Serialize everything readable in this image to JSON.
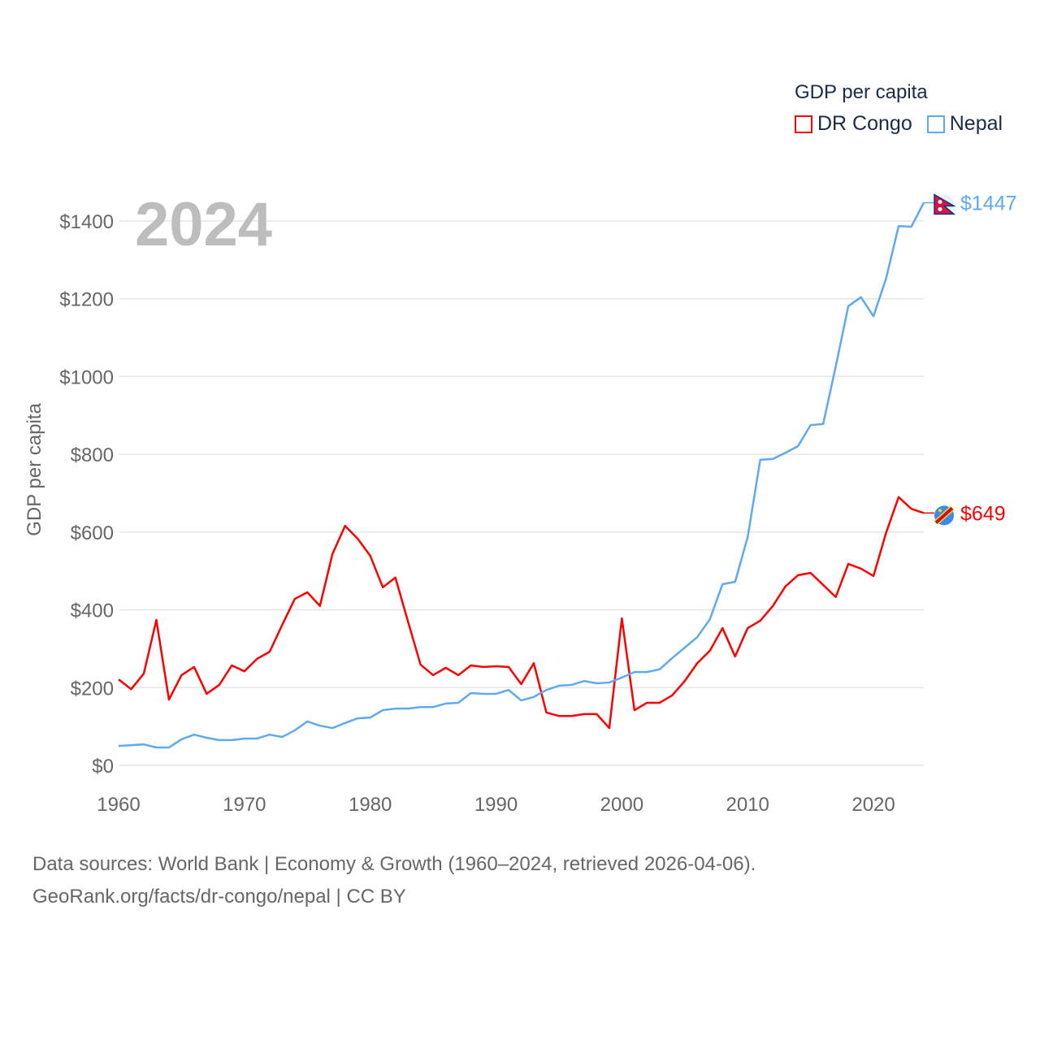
{
  "legend": {
    "title": "GDP per capita",
    "items": [
      "DR Congo",
      "Nepal"
    ]
  },
  "year_label": "2024",
  "footer": {
    "line1": "Data sources: World Bank | Economy & Growth (1960–2024, retrieved 2026-04-06).",
    "line2": "GeoRank.org/facts/dr-congo/nepal | CC BY"
  },
  "chart_data": {
    "type": "line",
    "title": "GDP per capita",
    "xlabel": "",
    "ylabel": "GDP per capita",
    "xlim": [
      1960,
      2024
    ],
    "ylim": [
      0,
      1400
    ],
    "grid": true,
    "legend_position": "top-right",
    "x_ticks": [
      "1960",
      "1970",
      "1980",
      "1990",
      "2000",
      "2010",
      "2020"
    ],
    "y_ticks": [
      "$0",
      "$200",
      "$400",
      "$600",
      "$800",
      "$1000",
      "$1200",
      "$1400"
    ],
    "x_start": 1960,
    "series": [
      {
        "name": "DR Congo",
        "color": "#ff0000",
        "end_label": "$649",
        "values": [
          221,
          196,
          236,
          374,
          169,
          232,
          253,
          184,
          207,
          257,
          242,
          274,
          292,
          361,
          428,
          445,
          410,
          544,
          616,
          583,
          539,
          458,
          483,
          370,
          259,
          232,
          251,
          232,
          257,
          253,
          255,
          253,
          209,
          263,
          136,
          127,
          127,
          132,
          132,
          96,
          378,
          142,
          161,
          161,
          180,
          217,
          263,
          295,
          353,
          280,
          353,
          372,
          410,
          460,
          489,
          495,
          464,
          433,
          518,
          506,
          487,
          598,
          690,
          660,
          649
        ]
      },
      {
        "name": "Nepal",
        "color": "#5ea9ef",
        "end_label": "$1447",
        "values": [
          50,
          52,
          54,
          46,
          46,
          67,
          79,
          71,
          65,
          65,
          69,
          69,
          79,
          73,
          90,
          113,
          102,
          96,
          109,
          121,
          123,
          142,
          146,
          146,
          150,
          150,
          159,
          161,
          186,
          184,
          184,
          194,
          167,
          176,
          194,
          205,
          207,
          217,
          211,
          213,
          226,
          240,
          240,
          247,
          276,
          303,
          330,
          376,
          466,
          472,
          587,
          786,
          788,
          804,
          821,
          875,
          878,
          1026,
          1181,
          1204,
          1155,
          1252,
          1387,
          1385,
          1447
        ]
      }
    ]
  }
}
